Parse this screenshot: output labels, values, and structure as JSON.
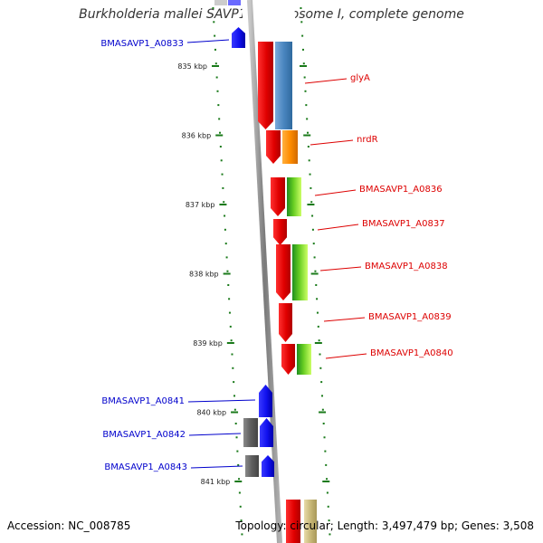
{
  "title": "Burkholderia mallei SAVP1 chromosome I, complete genome",
  "accession": "Accession: NC_008785",
  "topology": "Topology: circular; Length: 3,497,479 bp; Genes: 3,508",
  "colors": {
    "reverse_label": "#0000cc",
    "forward_label": "#dd0000",
    "backbone": "#888888",
    "tick": "#1a7a1a"
  },
  "ticks": [
    {
      "label": "835 kbp",
      "kbp": 835
    },
    {
      "label": "836 kbp",
      "kbp": 836
    },
    {
      "label": "837 kbp",
      "kbp": 837
    },
    {
      "label": "838 kbp",
      "kbp": 838
    },
    {
      "label": "839 kbp",
      "kbp": 839
    },
    {
      "label": "840 kbp",
      "kbp": 840
    },
    {
      "label": "841 kbp",
      "kbp": 841
    }
  ],
  "reverse_genes": [
    {
      "label": "BMASAVP1_A0833"
    },
    {
      "label": "BMASAVP1_A0841"
    },
    {
      "label": "BMASAVP1_A0842"
    },
    {
      "label": "BMASAVP1_A0843"
    }
  ],
  "forward_genes": [
    {
      "label": "glyA"
    },
    {
      "label": "nrdR"
    },
    {
      "label": "BMASAVP1_A0836"
    },
    {
      "label": "BMASAVP1_A0837"
    },
    {
      "label": "BMASAVP1_A0838"
    },
    {
      "label": "BMASAVP1_A0839"
    },
    {
      "label": "BMASAVP1_A0840"
    }
  ]
}
